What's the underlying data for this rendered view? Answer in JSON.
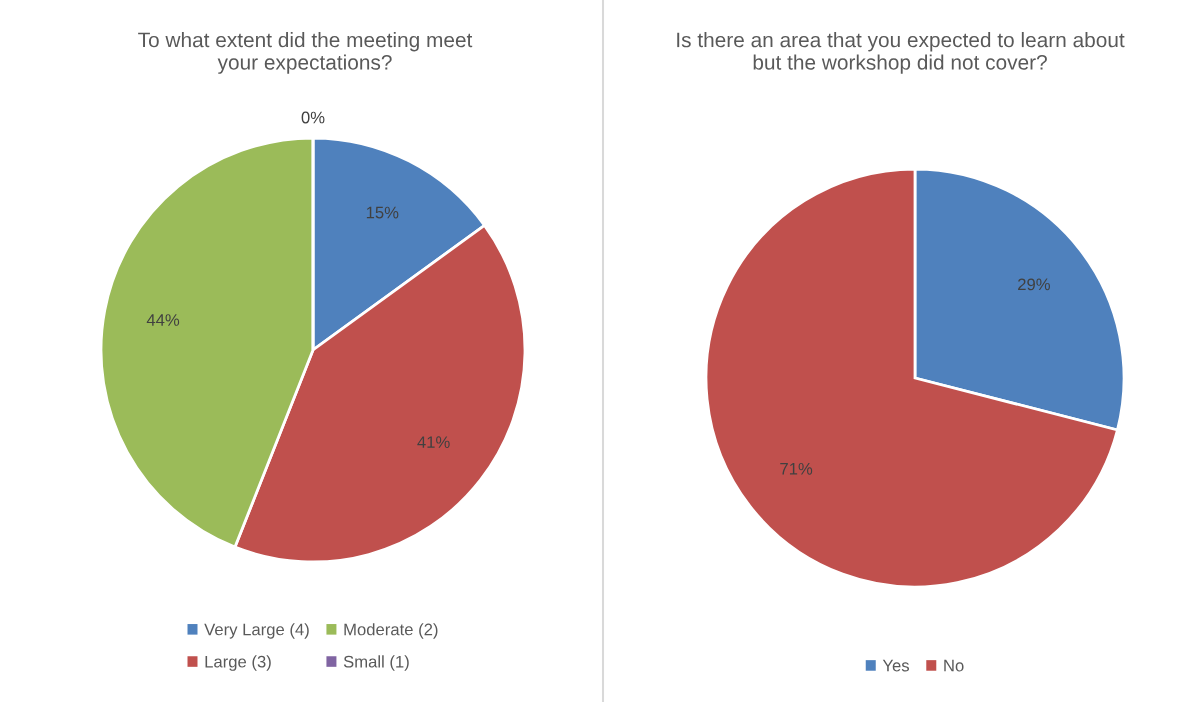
{
  "chart_data": [
    {
      "type": "pie",
      "title": "To what extent did the meeting meet your expectations?",
      "categories": [
        "Very Large (4)",
        "Large (3)",
        "Moderate (2)",
        "Small (1)"
      ],
      "values": [
        15,
        41,
        44,
        0
      ],
      "value_labels": [
        "15%",
        "41%",
        "44%",
        "0%"
      ],
      "colors": [
        "#4f81bd",
        "#c0504d",
        "#9bbb59",
        "#8064a2"
      ],
      "legend": "bottom"
    },
    {
      "type": "pie",
      "title": "Is there an area that you expected to learn about but the workshop did not cover?",
      "categories": [
        "Yes",
        "No"
      ],
      "values": [
        29,
        71
      ],
      "value_labels": [
        "29%",
        "71%"
      ],
      "colors": [
        "#4f81bd",
        "#c0504d"
      ],
      "legend": "bottom"
    }
  ]
}
